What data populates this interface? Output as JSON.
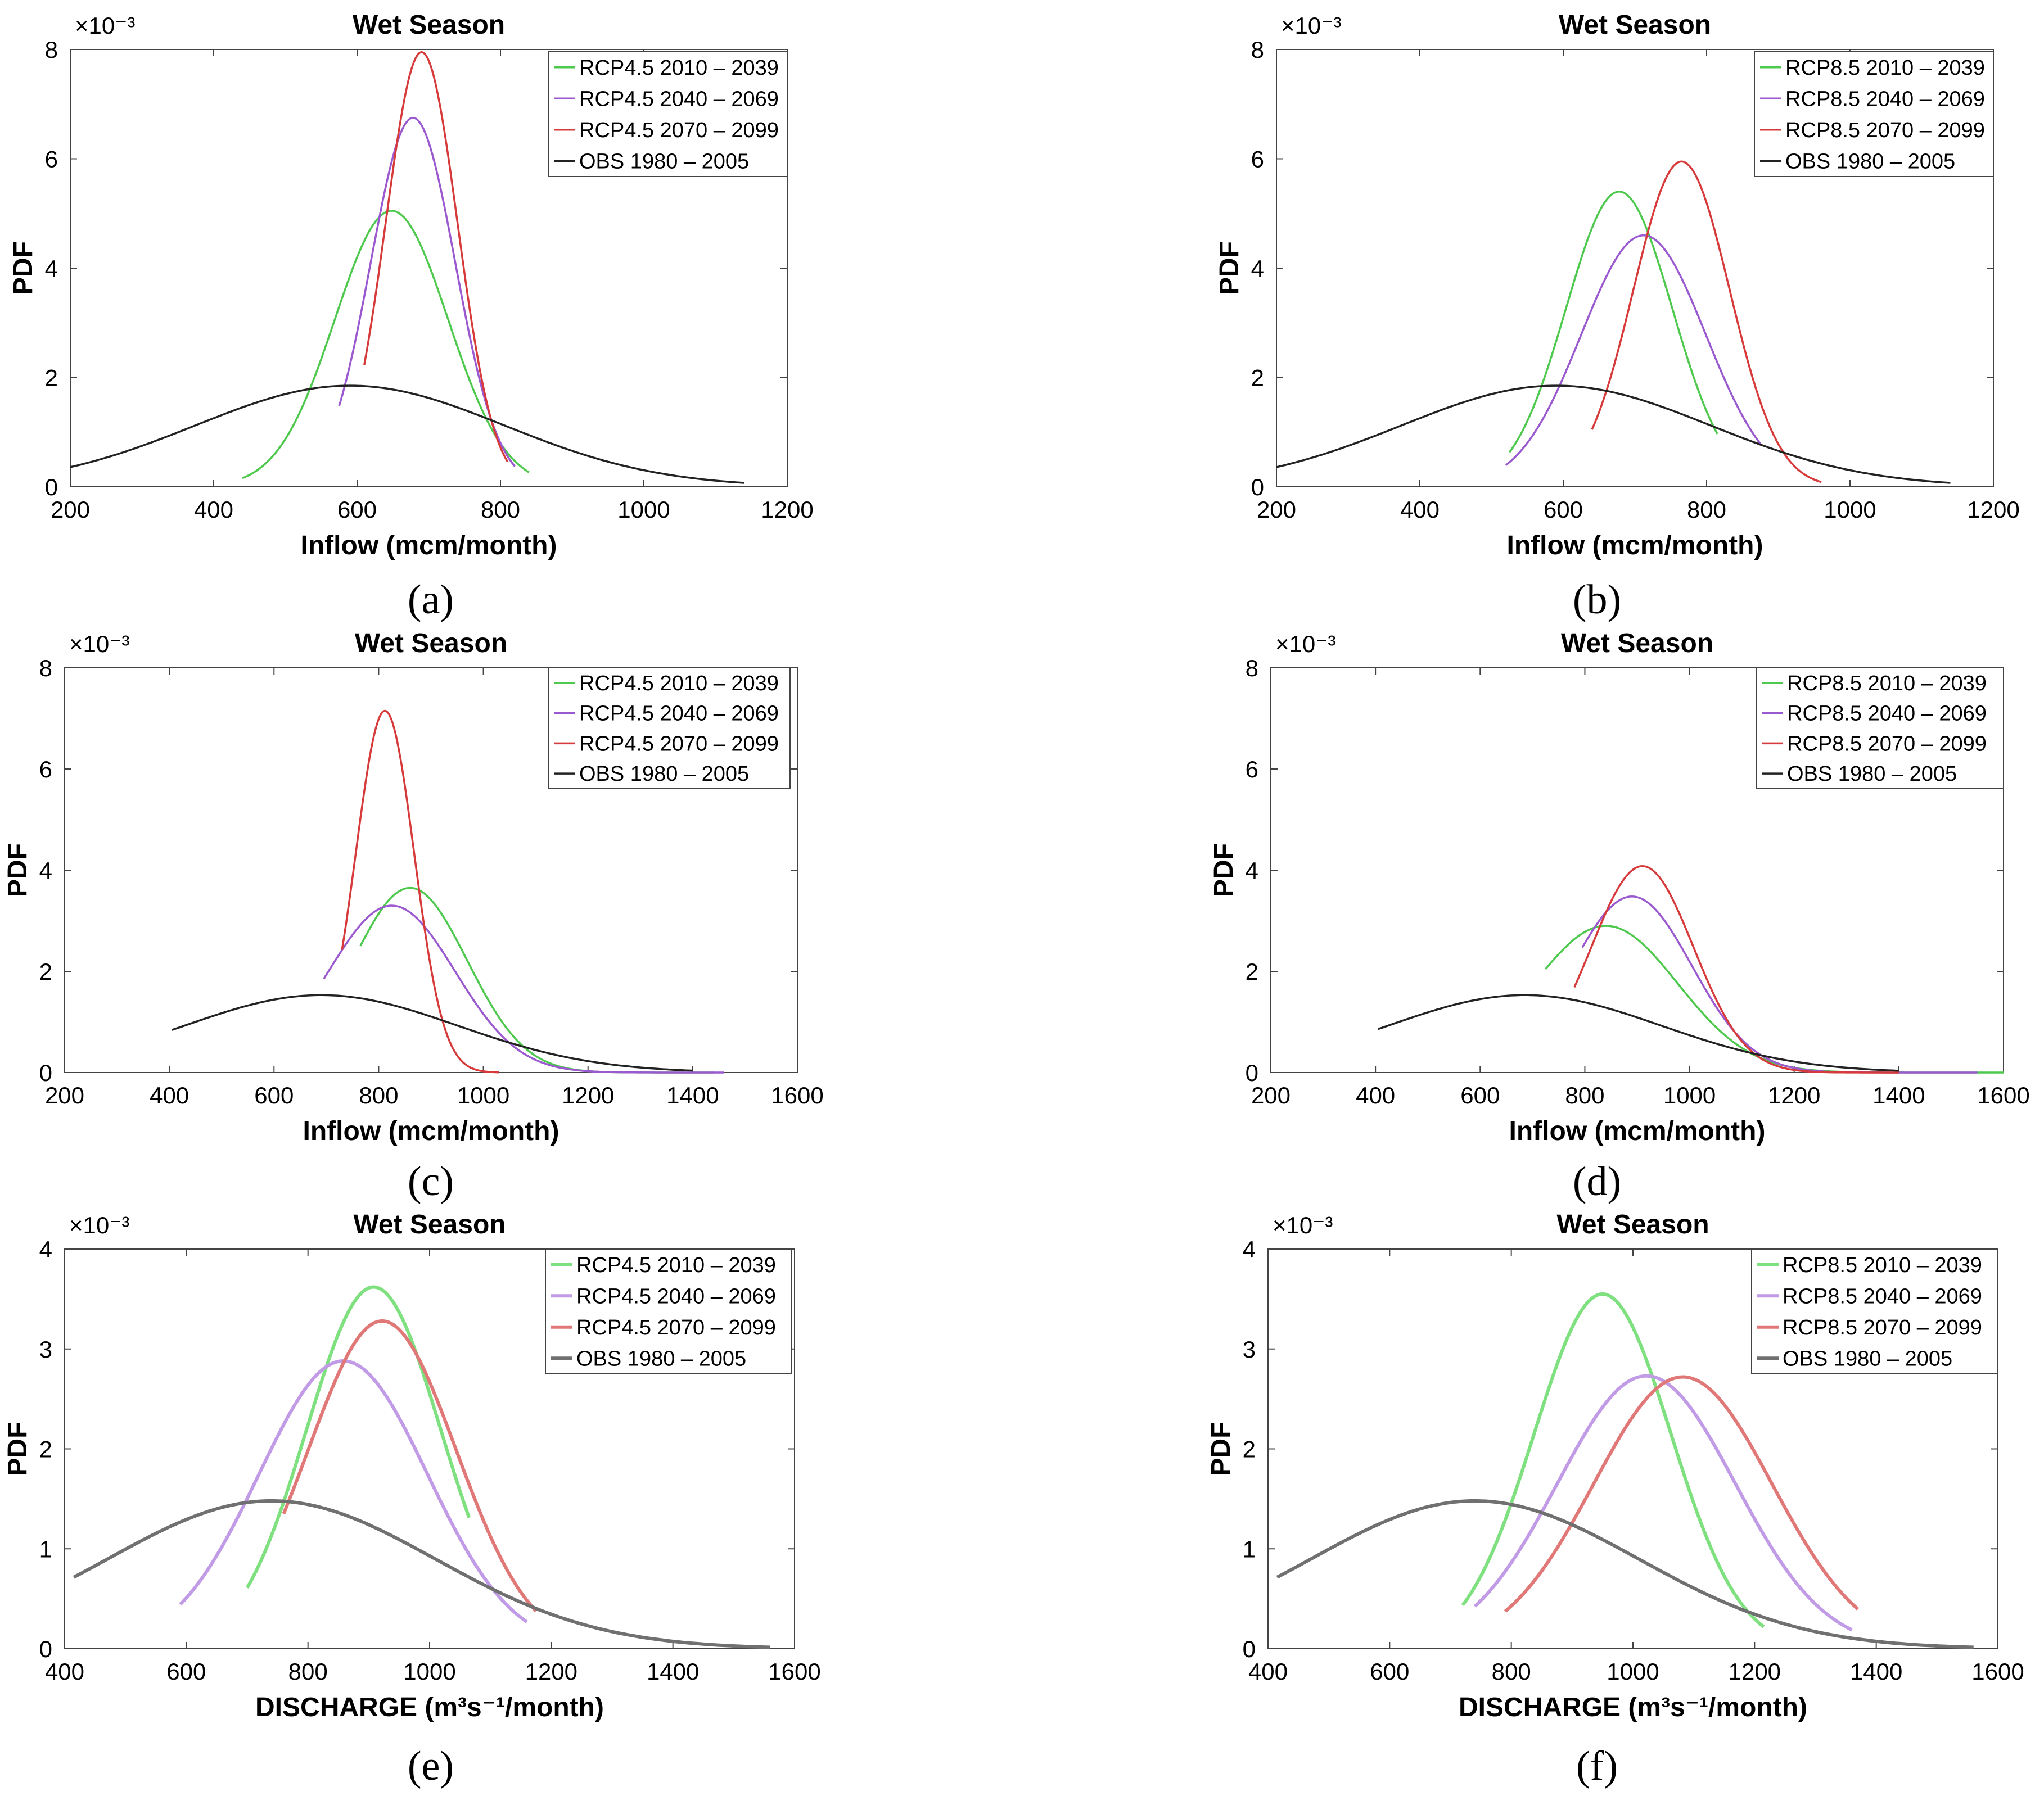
{
  "figure": {
    "panel_labels": [
      "(a)",
      "(b)",
      "(c)",
      "(d)",
      "(e)",
      "(f)"
    ]
  },
  "chart_data": [
    {
      "type": "line",
      "panel": "(a)",
      "title": "Wet Season",
      "xlabel": "Inflow (mcm/month)",
      "ylabel": "PDF",
      "exponent": "×10⁻³",
      "xlim": [
        200,
        1200
      ],
      "ylim": [
        0,
        8
      ],
      "xticks": [
        200,
        400,
        600,
        800,
        1000,
        1200
      ],
      "yticks": [
        0,
        2,
        4,
        6,
        8
      ],
      "series": [
        {
          "name": "RCP4.5 2010 – 2039",
          "color": "#4ec94e",
          "mu": 648,
          "peak": 5.05,
          "x": [
            440,
            840
          ]
        },
        {
          "name": "RCP4.5 2040 – 2069",
          "color": "#9b59d0",
          "mu": 678,
          "peak": 6.75,
          "x": [
            575,
            820
          ]
        },
        {
          "name": "RCP4.5 2070 – 2099",
          "color": "#d63a3a",
          "mu": 690,
          "peak": 7.95,
          "x": [
            610,
            810
          ]
        },
        {
          "name": "OBS 1980 – 2005",
          "color": "#222222",
          "mu": 590,
          "peak": 1.85,
          "x": [
            200,
            1140
          ]
        }
      ]
    },
    {
      "type": "line",
      "panel": "(b)",
      "title": "Wet Season",
      "xlabel": "Inflow (mcm/month)",
      "ylabel": "PDF",
      "exponent": "×10⁻³",
      "xlim": [
        200,
        1200
      ],
      "ylim": [
        0,
        8
      ],
      "xticks": [
        200,
        400,
        600,
        800,
        1000,
        1200
      ],
      "yticks": [
        0,
        2,
        4,
        6,
        8
      ],
      "series": [
        {
          "name": "RCP8.5 2010 – 2039",
          "color": "#4ec94e",
          "mu": 678,
          "peak": 5.4,
          "x": [
            525,
            815
          ]
        },
        {
          "name": "RCP8.5 2040 – 2069",
          "color": "#9b59d0",
          "mu": 712,
          "peak": 4.6,
          "x": [
            520,
            875
          ]
        },
        {
          "name": "RCP8.5 2070 – 2099",
          "color": "#d63a3a",
          "mu": 765,
          "peak": 5.95,
          "x": [
            640,
            960
          ]
        },
        {
          "name": "OBS 1980 – 2005",
          "color": "#222222",
          "mu": 590,
          "peak": 1.85,
          "x": [
            200,
            1140
          ]
        }
      ]
    },
    {
      "type": "line",
      "panel": "(c)",
      "title": "Wet Season",
      "xlabel": "Inflow (mcm/month)",
      "ylabel": "PDF",
      "exponent": "×10⁻³",
      "xlim": [
        200,
        1600
      ],
      "ylim": [
        0,
        8
      ],
      "xticks": [
        200,
        400,
        600,
        800,
        1000,
        1200,
        1400,
        1600
      ],
      "yticks": [
        0,
        2,
        4,
        6,
        8
      ],
      "series": [
        {
          "name": "RCP4.5 2010 – 2039",
          "color": "#4ec94e",
          "mu": 860,
          "peak": 3.65,
          "x": [
            765,
            1440
          ]
        },
        {
          "name": "RCP4.5 2040 – 2069",
          "color": "#9b59d0",
          "mu": 825,
          "peak": 3.3,
          "x": [
            695,
            1460
          ]
        },
        {
          "name": "RCP4.5 2070 – 2099",
          "color": "#d63a3a",
          "mu": 812,
          "peak": 7.15,
          "x": [
            730,
            1030
          ]
        },
        {
          "name": "OBS 1980 – 2005",
          "color": "#222222",
          "mu": 690,
          "peak": 1.53,
          "x": [
            405,
            1400
          ]
        }
      ]
    },
    {
      "type": "line",
      "panel": "(d)",
      "title": "Wet Season",
      "xlabel": "Inflow (mcm/month)",
      "ylabel": "PDF",
      "exponent": "×10⁻³",
      "xlim": [
        200,
        1600
      ],
      "ylim": [
        0,
        8
      ],
      "xticks": [
        200,
        400,
        600,
        800,
        1000,
        1200,
        1400,
        1600
      ],
      "yticks": [
        0,
        2,
        4,
        6,
        8
      ],
      "series": [
        {
          "name": "RCP8.5 2010 – 2039",
          "color": "#4ec94e",
          "mu": 840,
          "peak": 2.9,
          "x": [
            725,
            1600
          ]
        },
        {
          "name": "RCP8.5 2040 – 2069",
          "color": "#9b59d0",
          "mu": 890,
          "peak": 3.48,
          "x": [
            795,
            1550
          ]
        },
        {
          "name": "RCP8.5 2070 – 2099",
          "color": "#d63a3a",
          "mu": 910,
          "peak": 4.08,
          "x": [
            780,
            1400
          ]
        },
        {
          "name": "OBS 1980 – 2005",
          "color": "#222222",
          "mu": 685,
          "peak": 1.53,
          "x": [
            405,
            1400
          ]
        }
      ]
    },
    {
      "type": "line",
      "panel": "(e)",
      "title": "Wet Season",
      "xlabel": "DISCHARGE (m³s⁻¹/month)",
      "ylabel": "PDF",
      "exponent": "×10⁻³",
      "xlim": [
        400,
        1600
      ],
      "ylim": [
        0,
        4
      ],
      "xticks": [
        400,
        600,
        800,
        1000,
        1200,
        1400,
        1600
      ],
      "yticks": [
        0,
        1,
        2,
        3,
        4
      ],
      "series": [
        {
          "name": "RCP4.5 2010 – 2039",
          "color": "#7fe07f",
          "mu": 908,
          "peak": 3.62,
          "x": [
            700,
            1065
          ]
        },
        {
          "name": "RCP4.5 2040 – 2069",
          "color": "#c29be6",
          "mu": 858,
          "peak": 2.88,
          "x": [
            590,
            1160
          ]
        },
        {
          "name": "RCP4.5 2070 – 2099",
          "color": "#e07878",
          "mu": 922,
          "peak": 3.28,
          "x": [
            760,
            1175
          ]
        },
        {
          "name": "OBS 1980 – 2005",
          "color": "#707070",
          "mu": 740,
          "peak": 1.48,
          "x": [
            415,
            1560
          ]
        }
      ]
    },
    {
      "type": "line",
      "panel": "(f)",
      "title": "Wet Season",
      "xlabel": "DISCHARGE (m³s⁻¹/month)",
      "ylabel": "PDF",
      "exponent": "×10⁻³",
      "xlim": [
        400,
        1600
      ],
      "ylim": [
        0,
        4
      ],
      "xticks": [
        400,
        600,
        800,
        1000,
        1200,
        1400,
        1600
      ],
      "yticks": [
        0,
        1,
        2,
        3,
        4
      ],
      "series": [
        {
          "name": "RCP8.5 2010 – 2039",
          "color": "#7fe07f",
          "mu": 950,
          "peak": 3.55,
          "x": [
            720,
            1215
          ]
        },
        {
          "name": "RCP8.5 2040 – 2069",
          "color": "#c29be6",
          "mu": 1022,
          "peak": 2.73,
          "x": [
            740,
            1360
          ]
        },
        {
          "name": "RCP8.5 2070 – 2099",
          "color": "#e07878",
          "mu": 1082,
          "peak": 2.72,
          "x": [
            790,
            1370
          ]
        },
        {
          "name": "OBS 1980 – 2005",
          "color": "#707070",
          "mu": 740,
          "peak": 1.48,
          "x": [
            415,
            1560
          ]
        }
      ]
    }
  ]
}
